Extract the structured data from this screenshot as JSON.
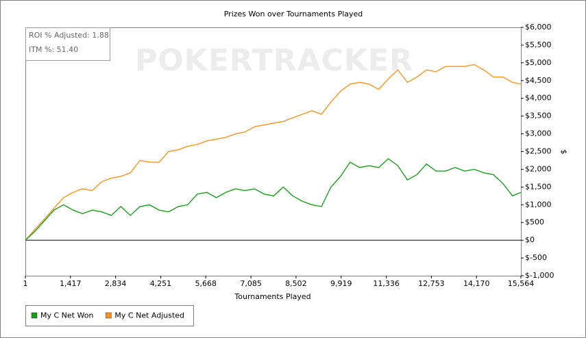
{
  "chart_data": {
    "type": "line",
    "title": "Prizes Won over Tournaments Played",
    "x_label": "Tournaments Played",
    "y_label": "$",
    "watermark": "POKERTRACKER",
    "annotations": [
      "ROI % Adjusted: 1.88",
      "ITM %: 51.40"
    ],
    "x": [
      1,
      300,
      600,
      900,
      1200,
      1500,
      1800,
      2100,
      2400,
      2700,
      3000,
      3300,
      3600,
      3900,
      4200,
      4500,
      4800,
      5100,
      5400,
      5700,
      6000,
      6300,
      6600,
      6900,
      7200,
      7500,
      7800,
      8100,
      8400,
      8700,
      9000,
      9300,
      9600,
      9900,
      10200,
      10500,
      10800,
      11100,
      11400,
      11700,
      12000,
      12300,
      12600,
      12900,
      13200,
      13500,
      13800,
      14100,
      14400,
      14700,
      15000,
      15300,
      15564
    ],
    "series": [
      {
        "name": "My C Net Won",
        "color": "#1a9e1a",
        "values": [
          0,
          250,
          550,
          850,
          1000,
          850,
          750,
          850,
          800,
          700,
          950,
          700,
          950,
          1000,
          850,
          800,
          950,
          1000,
          1300,
          1350,
          1200,
          1350,
          1450,
          1400,
          1450,
          1300,
          1250,
          1500,
          1250,
          1100,
          1000,
          950,
          1500,
          1800,
          2200,
          2050,
          2100,
          2050,
          2300,
          2100,
          1700,
          1850,
          2150,
          1950,
          1950,
          2050,
          1950,
          2000,
          1900,
          1850,
          1600,
          1250,
          1350
        ]
      },
      {
        "name": "My C Net Adjusted",
        "color": "#f7941d",
        "values": [
          0,
          300,
          600,
          900,
          1200,
          1350,
          1450,
          1400,
          1650,
          1750,
          1800,
          1900,
          2250,
          2200,
          2200,
          2500,
          2550,
          2650,
          2700,
          2800,
          2850,
          2900,
          3000,
          3050,
          3200,
          3250,
          3300,
          3350,
          3450,
          3550,
          3650,
          3550,
          3900,
          4200,
          4400,
          4450,
          4400,
          4250,
          4550,
          4800,
          4450,
          4600,
          4800,
          4750,
          4900,
          4900,
          4900,
          4950,
          4800,
          4600,
          4600,
          4450,
          4400
        ]
      }
    ],
    "xlim": [
      1,
      15564
    ],
    "xticks": [
      1,
      {
        "value": 1417,
        "label": "1,417"
      },
      {
        "value": 2834,
        "label": "2,834"
      },
      {
        "value": 4251,
        "label": "4,251"
      },
      {
        "value": 5668,
        "label": "5,668"
      },
      {
        "value": 7085,
        "label": "7,085"
      },
      {
        "value": 8502,
        "label": "8,502"
      },
      {
        "value": 9919,
        "label": "9,919"
      },
      {
        "value": 11336,
        "label": "11,336"
      },
      {
        "value": 12753,
        "label": "12,753"
      },
      {
        "value": 14170,
        "label": "14,170"
      },
      {
        "value": 15564,
        "label": "15,564"
      }
    ],
    "ylim": [
      -1000,
      6000
    ],
    "yticks": [
      {
        "value": -1000,
        "label": "$-1,000"
      },
      {
        "value": -500,
        "label": "$-500"
      },
      {
        "value": 0,
        "label": "$0"
      },
      {
        "value": 500,
        "label": "$500"
      },
      {
        "value": 1000,
        "label": "$1,000"
      },
      {
        "value": 1500,
        "label": "$1,500"
      },
      {
        "value": 2000,
        "label": "$2,000"
      },
      {
        "value": 2500,
        "label": "$2,500"
      },
      {
        "value": 3000,
        "label": "$3,000"
      },
      {
        "value": 3500,
        "label": "$3,500"
      },
      {
        "value": 4000,
        "label": "$4,000"
      },
      {
        "value": 4500,
        "label": "$4,500"
      },
      {
        "value": 5000,
        "label": "$5,000"
      },
      {
        "value": 5500,
        "label": "$5,500"
      },
      {
        "value": 6000,
        "label": "$6,000"
      }
    ],
    "y_axis_side": "right",
    "grid": false,
    "legend": "bottom-left"
  }
}
